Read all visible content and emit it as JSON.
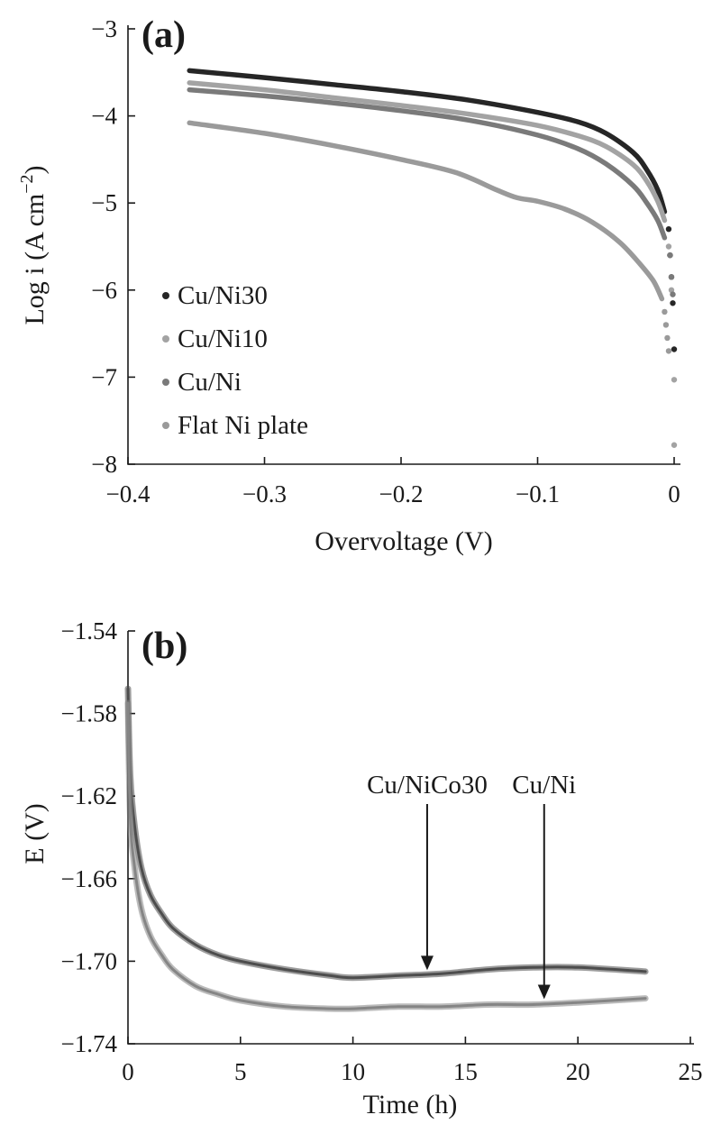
{
  "chart_data": [
    {
      "type": "line",
      "panel_label": "(a)",
      "xlabel": "Overvoltage (V)",
      "ylabel_main": "Log i (A cm",
      "ylabel_sup": "−2",
      "ylabel_close": ")",
      "xlim": [
        -0.4,
        0.0
      ],
      "ylim": [
        -8,
        -3
      ],
      "x_ticks": [
        -0.4,
        -0.3,
        -0.2,
        -0.1,
        0
      ],
      "x_tick_labels": [
        "−0.4",
        "−0.3",
        "−0.2",
        "−0.1",
        "0"
      ],
      "y_ticks": [
        -3,
        -4,
        -5,
        -6,
        -7,
        -8
      ],
      "y_tick_labels": [
        "−3",
        "−4",
        "−5",
        "−6",
        "−7",
        "−8"
      ],
      "legend_position": "bottom-left",
      "series": [
        {
          "name": "Cu/Ni30",
          "color": "#262626",
          "x": [
            -0.355,
            -0.3,
            -0.25,
            -0.2,
            -0.15,
            -0.1,
            -0.07,
            -0.05,
            -0.03,
            -0.02,
            -0.012,
            -0.007
          ],
          "y": [
            -3.48,
            -3.56,
            -3.64,
            -3.72,
            -3.82,
            -3.96,
            -4.07,
            -4.2,
            -4.42,
            -4.62,
            -4.85,
            -5.1
          ],
          "dots_x": [
            -0.004,
            -0.003,
            -0.002,
            -0.001,
            0.0
          ],
          "dots_y": [
            -5.3,
            -5.6,
            -5.85,
            -6.15,
            -6.68
          ]
        },
        {
          "name": "Cu/Ni10",
          "color": "#a3a3a3",
          "x": [
            -0.355,
            -0.3,
            -0.25,
            -0.2,
            -0.15,
            -0.1,
            -0.07,
            -0.05,
            -0.03,
            -0.02,
            -0.012,
            -0.007
          ],
          "y": [
            -3.62,
            -3.7,
            -3.79,
            -3.88,
            -3.98,
            -4.11,
            -4.23,
            -4.35,
            -4.56,
            -4.75,
            -4.98,
            -5.2
          ],
          "dots_x": [
            -0.004,
            -0.002,
            0.0,
            0.0
          ],
          "dots_y": [
            -5.5,
            -6.0,
            -7.03,
            -7.78
          ]
        },
        {
          "name": "Cu/Ni",
          "color": "#7a7a7a",
          "x": [
            -0.355,
            -0.3,
            -0.25,
            -0.2,
            -0.15,
            -0.1,
            -0.07,
            -0.05,
            -0.03,
            -0.02,
            -0.012,
            -0.007
          ],
          "y": [
            -3.7,
            -3.77,
            -3.85,
            -3.94,
            -4.05,
            -4.22,
            -4.38,
            -4.55,
            -4.8,
            -5.0,
            -5.2,
            -5.4
          ],
          "dots_x": [
            -0.003,
            -0.002,
            -0.001
          ],
          "dots_y": [
            -5.6,
            -5.85,
            -6.05
          ]
        },
        {
          "name": "Flat Ni plate",
          "color": "#9a9a9a",
          "x": [
            -0.355,
            -0.3,
            -0.25,
            -0.2,
            -0.16,
            -0.13,
            -0.115,
            -0.1,
            -0.08,
            -0.06,
            -0.04,
            -0.025,
            -0.015,
            -0.009
          ],
          "y": [
            -4.08,
            -4.2,
            -4.34,
            -4.5,
            -4.65,
            -4.85,
            -4.94,
            -4.98,
            -5.07,
            -5.22,
            -5.45,
            -5.7,
            -5.9,
            -6.1
          ],
          "dots_x": [
            -0.007,
            -0.006,
            -0.005,
            -0.004
          ],
          "dots_y": [
            -6.25,
            -6.4,
            -6.55,
            -6.7
          ]
        }
      ]
    },
    {
      "type": "line",
      "panel_label": "(b)",
      "xlabel": "Time (h)",
      "ylabel": "E (V)",
      "xlim": [
        0,
        25
      ],
      "ylim": [
        -1.74,
        -1.54
      ],
      "x_ticks": [
        0,
        5,
        10,
        15,
        20,
        25
      ],
      "x_tick_labels": [
        "0",
        "5",
        "10",
        "15",
        "20",
        "25"
      ],
      "y_ticks": [
        -1.54,
        -1.58,
        -1.62,
        -1.66,
        -1.7,
        -1.74
      ],
      "y_tick_labels": [
        "−1.54",
        "−1.58",
        "−1.62",
        "−1.66",
        "−1.70",
        "−1.74"
      ],
      "series": [
        {
          "name": "Cu/NiCo30",
          "color": "#4d4d4d",
          "x": [
            0,
            0.1,
            0.3,
            0.6,
            1.0,
            1.5,
            2.0,
            3.0,
            4.0,
            5.0,
            7.0,
            9.0,
            10.0,
            12.0,
            14.0,
            16.0,
            18.0,
            20.0,
            23.0
          ],
          "y": [
            -1.568,
            -1.61,
            -1.635,
            -1.655,
            -1.668,
            -1.677,
            -1.684,
            -1.692,
            -1.697,
            -1.7,
            -1.704,
            -1.707,
            -1.708,
            -1.707,
            -1.706,
            -1.704,
            -1.703,
            -1.703,
            -1.705
          ]
        },
        {
          "name": "Cu/Ni",
          "color": "#858585",
          "x": [
            0,
            0.1,
            0.3,
            0.6,
            1.0,
            1.5,
            2.0,
            3.0,
            4.0,
            5.0,
            7.0,
            9.0,
            10.0,
            12.0,
            14.0,
            16.0,
            18.0,
            20.0,
            23.0
          ],
          "y": [
            -1.575,
            -1.63,
            -1.655,
            -1.675,
            -1.688,
            -1.697,
            -1.704,
            -1.712,
            -1.716,
            -1.719,
            -1.722,
            -1.723,
            -1.723,
            -1.722,
            -1.722,
            -1.721,
            -1.721,
            -1.72,
            -1.718
          ]
        }
      ],
      "annotations": [
        {
          "text": "Cu/NiCo30",
          "arrow_x": 13.3,
          "arrow_y": -1.707
        },
        {
          "text": "Cu/Ni",
          "arrow_x": 18.5,
          "arrow_y": -1.721
        }
      ]
    }
  ]
}
